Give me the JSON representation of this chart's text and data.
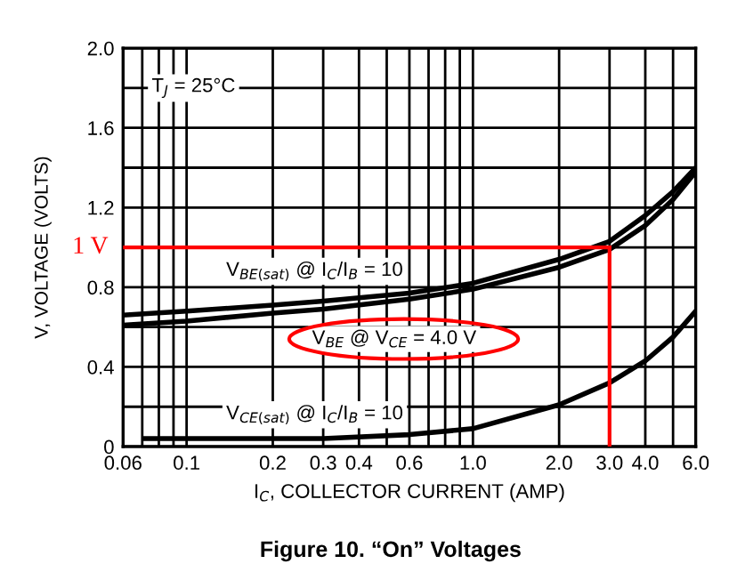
{
  "chart_data": {
    "type": "line",
    "title": "Figure 10. “On” Voltages",
    "xlabel": "I$_{C}$, COLLECTOR CURRENT (AMP)",
    "ylabel": "V, VOLTAGE (VOLTS)",
    "annotations": [
      "T$_{J}$ = 25°C"
    ],
    "log": "x",
    "grid": true,
    "legend": false,
    "marker": "none",
    "line_style": "solid",
    "xlim": [
      0.06,
      6.0
    ],
    "xticks": [
      0.06,
      {
        "value": 0.07,
        "label": null
      },
      {
        "value": 0.08,
        "label": null
      },
      {
        "value": 0.09,
        "label": null
      },
      0.1,
      0.2,
      0.3,
      0.4,
      {
        "value": 0.5,
        "label": null
      },
      0.6,
      {
        "value": 0.7,
        "label": null
      },
      {
        "value": 0.8,
        "label": null
      },
      {
        "value": 0.9,
        "label": null
      },
      {
        "value": 1.0,
        "label": "1.0"
      },
      {
        "value": 2.0,
        "label": "2.0"
      },
      {
        "value": 3.0,
        "label": "3.0"
      },
      {
        "value": 4.0,
        "label": "4.0"
      },
      {
        "value": 5.0,
        "label": null
      },
      {
        "value": 6.0,
        "label": "6.0"
      }
    ],
    "ylim": [
      0,
      2.0
    ],
    "yticks": [
      0,
      {
        "value": 0.2,
        "label": null
      },
      0.4,
      {
        "value": 0.6,
        "label": null
      },
      0.8,
      {
        "value": 1.0,
        "label": null
      },
      1.2,
      {
        "value": 1.4,
        "label": null
      },
      1.6,
      {
        "value": 1.8,
        "label": null
      },
      {
        "value": 2.0,
        "label": "2.0"
      }
    ],
    "ref_lines": [
      {
        "axis": "y",
        "value": 1.0,
        "label": "1 V",
        "color": "#ff0000"
      },
      {
        "axis": "x",
        "value": 3.0,
        "label": null,
        "color": "#ff0000"
      }
    ],
    "series": [
      {
        "name": "V$_{BE(sat)}$ @ I$_{C}$/I$_{B}$ = 10",
        "color": "#000000",
        "x": [
          0.06,
          0.1,
          0.2,
          0.3,
          0.6,
          1.0,
          2.0,
          3.0,
          4.0,
          5.0,
          6.0
        ],
        "values": [
          0.66,
          0.68,
          0.71,
          0.73,
          0.77,
          0.82,
          0.94,
          1.03,
          1.16,
          1.28,
          1.4
        ]
      },
      {
        "name": "V$_{BE}$ @ V$_{CE}$ = 4.0 V",
        "color": "#000000",
        "x": [
          0.06,
          0.1,
          0.2,
          0.3,
          0.6,
          1.0,
          2.0,
          3.0,
          4.0,
          5.0,
          6.0
        ],
        "values": [
          0.61,
          0.63,
          0.67,
          0.69,
          0.74,
          0.79,
          0.9,
          0.99,
          1.11,
          1.24,
          1.38
        ]
      },
      {
        "name": "V$_{CE(sat)}$ @ I$_{C}$/I$_{B}$ = 10",
        "color": "#000000",
        "x": [
          0.072,
          0.1,
          0.3,
          0.6,
          1.0,
          2.0,
          3.0,
          4.0,
          5.0,
          6.0
        ],
        "values": [
          0.04,
          0.04,
          0.04,
          0.06,
          0.09,
          0.21,
          0.32,
          0.43,
          0.55,
          0.68
        ]
      }
    ]
  }
}
